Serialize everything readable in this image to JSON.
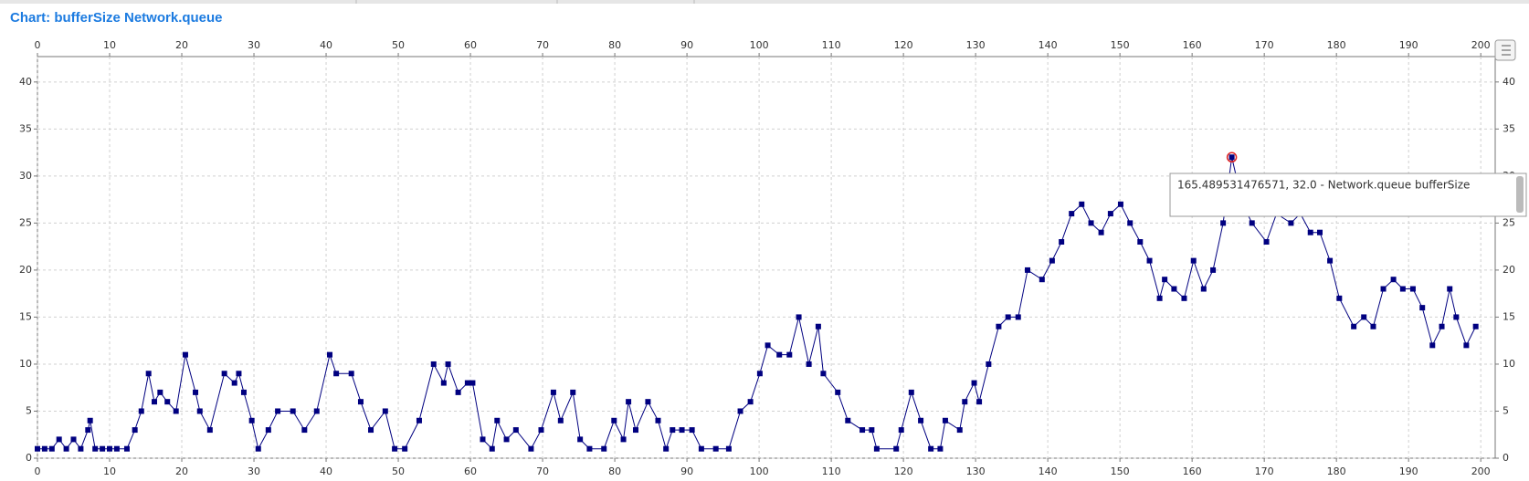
{
  "chart_data": {
    "type": "line",
    "title": "Chart: bufferSize Network.queue",
    "tooltip": "165.489531476571, 32.0 - Network.queue bufferSize",
    "series": [
      {
        "name": "Network.queue bufferSize",
        "color": "#000080",
        "x": [
          0,
          1,
          2,
          3,
          4,
          5,
          6,
          7,
          7.3,
          8,
          9,
          10,
          11,
          12.4,
          13.5,
          14.4,
          15.4,
          16.2,
          17,
          18,
          19.2,
          20.5,
          21.9,
          22.5,
          23.9,
          25.9,
          27.3,
          27.9,
          28.6,
          29.7,
          30.6,
          32,
          33.3,
          35.4,
          37,
          38.7,
          40.5,
          41.4,
          43.5,
          44.8,
          46.2,
          48.2,
          49.5,
          50.9,
          52.9,
          54.9,
          56.3,
          56.9,
          58.3,
          59.6,
          60.3,
          61.7,
          63,
          63.7,
          65,
          66.3,
          68.4,
          69.8,
          71.5,
          72.5,
          74.2,
          75.2,
          76.5,
          78.5,
          79.9,
          81.2,
          81.9,
          82.9,
          84.6,
          86,
          87.1,
          88,
          89.3,
          90.7,
          92,
          94,
          95.8,
          97.4,
          98.8,
          100.1,
          101.2,
          102.8,
          104.2,
          105.5,
          106.9,
          108.2,
          108.9,
          110.9,
          112.3,
          114.3,
          115.6,
          116.3,
          119,
          119.7,
          121.1,
          122.4,
          123.8,
          125.1,
          125.8,
          127.8,
          128.5,
          129.8,
          130.5,
          131.8,
          133.2,
          134.5,
          135.9,
          137.2,
          139.2,
          140.6,
          141.9,
          143.3,
          144.7,
          146,
          147.4,
          148.7,
          150.1,
          151.4,
          152.8,
          154.1,
          155.5,
          156.2,
          157.5,
          158.9,
          160.2,
          161.6,
          162.9,
          164.3,
          165.5,
          167,
          168.3,
          170.3,
          171.7,
          173.7,
          175,
          176.4,
          177.7,
          179.1,
          180.4,
          182.4,
          183.8,
          185.1,
          186.5,
          187.9,
          189.2,
          190.6,
          191.9,
          193.3,
          194.6,
          195.7,
          196.6,
          198,
          199.3
        ],
        "values": [
          1,
          1,
          1,
          2,
          1,
          2,
          1,
          3,
          4,
          1,
          1,
          1,
          1,
          1,
          3,
          5,
          9,
          6,
          7,
          6,
          5,
          11,
          7,
          5,
          3,
          9,
          8,
          9,
          7,
          4,
          1,
          3,
          5,
          5,
          3,
          5,
          11,
          9,
          9,
          6,
          3,
          5,
          1,
          1,
          4,
          10,
          8,
          10,
          7,
          8,
          8,
          2,
          1,
          4,
          2,
          3,
          1,
          3,
          7,
          4,
          7,
          2,
          1,
          1,
          4,
          2,
          6,
          3,
          6,
          4,
          1,
          3,
          3,
          3,
          1,
          1,
          1,
          5,
          6,
          9,
          12,
          11,
          11,
          15,
          10,
          14,
          9,
          7,
          4,
          3,
          3,
          1,
          1,
          3,
          7,
          4,
          1,
          1,
          4,
          3,
          6,
          8,
          6,
          10,
          14,
          15,
          15,
          20,
          19,
          21,
          23,
          26,
          27,
          25,
          24,
          26,
          27,
          25,
          23,
          21,
          17,
          19,
          18,
          17,
          21,
          18,
          20,
          25,
          32,
          27,
          25,
          23,
          26,
          25,
          26,
          24,
          24,
          21,
          17,
          14,
          15,
          14,
          18,
          19,
          18,
          18,
          16,
          12,
          14,
          18,
          15,
          12,
          14
        ]
      }
    ],
    "xlim": [
      0,
      202
    ],
    "ylim": [
      0,
      42.7
    ],
    "xticks": [
      0,
      10,
      20,
      30,
      40,
      50,
      60,
      70,
      80,
      90,
      100,
      110,
      120,
      130,
      140,
      150,
      160,
      170,
      180,
      190,
      200
    ],
    "yticks": [
      0,
      5,
      10,
      15,
      20,
      25,
      30,
      35,
      40
    ],
    "grid": true
  }
}
